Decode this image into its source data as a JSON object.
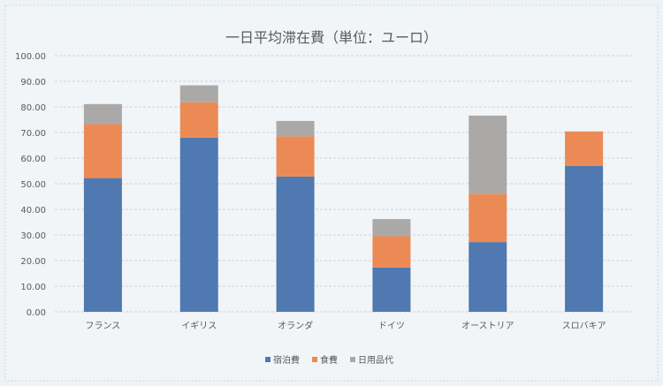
{
  "chart_data": {
    "type": "bar",
    "stacked": true,
    "title": "一日平均滞在費（単位：ユーロ）",
    "xlabel": "",
    "ylabel": "",
    "ylim": [
      0,
      100
    ],
    "yticks": [
      "0.00",
      "10.00",
      "20.00",
      "30.00",
      "40.00",
      "50.00",
      "60.00",
      "70.00",
      "80.00",
      "90.00",
      "100.00"
    ],
    "grid": true,
    "legend_position": "bottom",
    "categories": [
      "フランス",
      "イギリス",
      "オランダ",
      "ドイツ",
      "オーストリア",
      "スロバキア"
    ],
    "series": [
      {
        "name": "宿泊費",
        "color": "#4f79b0",
        "values": [
          52.2,
          68.0,
          52.8,
          17.3,
          27.2,
          57.0
        ]
      },
      {
        "name": "食費",
        "color": "#ec8a55",
        "values": [
          21.1,
          13.8,
          15.7,
          12.2,
          18.9,
          13.4
        ]
      },
      {
        "name": "日用品代",
        "color": "#aba9a8",
        "values": [
          7.8,
          6.6,
          6.0,
          6.7,
          30.5,
          0
        ]
      }
    ]
  }
}
